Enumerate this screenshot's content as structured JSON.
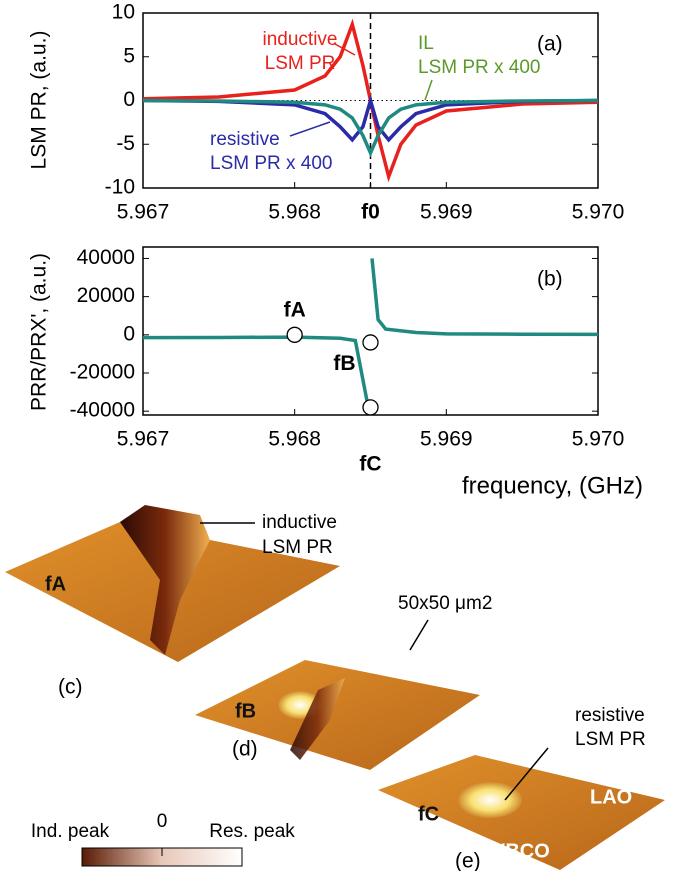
{
  "chart_data": [
    {
      "type": "line",
      "panel": "(a)",
      "y_label": "LSM PR, (a.u.)",
      "x": [
        5.967,
        5.9675,
        5.968,
        5.9682,
        5.9683,
        5.96838,
        5.96845,
        5.9685,
        5.96855,
        5.96862,
        5.9687,
        5.9688,
        5.969,
        5.9695,
        5.97
      ],
      "series": [
        {
          "label_lines": [
            "inductive",
            "LSM PR"
          ],
          "color": "#e8211c",
          "values": [
            0.2,
            0.4,
            1.2,
            2.8,
            5.0,
            8.7,
            4,
            0,
            -4,
            -8.7,
            -5,
            -2.8,
            -1.2,
            -0.4,
            -0.2
          ]
        },
        {
          "label_lines": [
            "resistive",
            "LSM PR x 400"
          ],
          "color": "#2b2ba8",
          "values": [
            0,
            -0.1,
            -0.5,
            -1.5,
            -3,
            -4.5,
            -3,
            0,
            -3,
            -4.5,
            -3,
            -1.5,
            -0.5,
            -0.1,
            0
          ]
        },
        {
          "label_lines": [
            "IL",
            "LSM PR x 400"
          ],
          "color": "#1f8a80",
          "values": [
            0,
            -0.05,
            -0.2,
            -0.5,
            -1,
            -2,
            -4,
            -6,
            -4,
            -2,
            -1,
            -0.5,
            -0.2,
            -0.05,
            0
          ]
        }
      ],
      "xlim": [
        5.967,
        5.97
      ],
      "xticks": [
        5.967,
        5.968,
        {
          "value": 5.9685,
          "label": "f0"
        },
        5.969,
        {
          "value": 5.97,
          "label": "5.970"
        }
      ],
      "ylim": [
        -10,
        10
      ],
      "yticks": [
        -10,
        -5,
        0,
        5,
        10
      ],
      "reference_line": 0,
      "marker_line": 5.9685
    },
    {
      "type": "line",
      "panel": "(b)",
      "y_label": "PRR/PRX', (a.u.)",
      "x_label": "frequency, (GHz)",
      "x": [
        5.967,
        5.9675,
        5.968,
        5.9683,
        5.9684,
        5.96849,
        5.9685,
        5.96851,
        5.96855,
        5.9686,
        5.9688,
        5.969,
        5.9695,
        5.97
      ],
      "series": [
        {
          "color": "#1f8a80",
          "values": [
            -1500,
            -1400,
            -1200,
            -1800,
            -3000,
            -40000,
            null,
            40000,
            8000,
            3000,
            1200,
            500,
            300,
            200
          ]
        }
      ],
      "markers": {
        "labels": [
          "fA",
          "fB",
          "fC"
        ],
        "x": [
          5.968,
          5.9685,
          5.9685
        ],
        "values": [
          0,
          -4000,
          -38000
        ]
      },
      "xlim": [
        5.967,
        5.97
      ],
      "xticks": [
        5.967,
        5.968,
        5.969,
        {
          "value": 5.97,
          "label": "5.970"
        }
      ],
      "ylim": [
        -42000,
        46000
      ],
      "yticks": [
        -40000,
        -20000,
        0,
        20000,
        40000
      ]
    }
  ],
  "images": {
    "panels": [
      {
        "id": "(c)",
        "point": "fA",
        "note_lines": [
          "inductive",
          "LSM PR"
        ]
      },
      {
        "id": "(d)",
        "point": "fB",
        "note": "50x50 μm2"
      },
      {
        "id": "(e)",
        "point": "fC",
        "note_lines": [
          "resistive",
          "LSM PR"
        ],
        "labels": [
          "LAO",
          "YBCO"
        ]
      }
    ],
    "colorbar": {
      "left": "Ind. peak",
      "center": "0",
      "right": "Res. peak"
    }
  }
}
